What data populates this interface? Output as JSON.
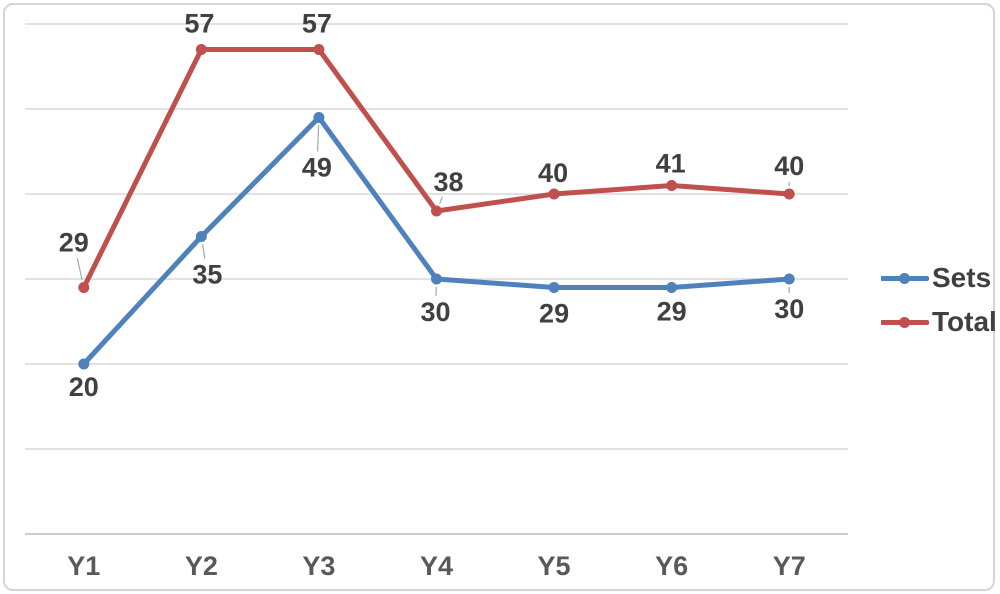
{
  "chart_data": {
    "type": "line",
    "title": "",
    "xlabel": "",
    "ylabel": "",
    "categories": [
      "Y1",
      "Y2",
      "Y3",
      "Y4",
      "Y5",
      "Y6",
      "Y7"
    ],
    "series": [
      {
        "name": "Sets",
        "color": "#4F81BD",
        "values": [
          20,
          35,
          49,
          30,
          29,
          29,
          30
        ],
        "label_offsets": [
          [
            0,
            23
          ],
          [
            6,
            38
          ],
          [
            -2,
            50
          ],
          [
            -1,
            33
          ],
          [
            0,
            26
          ],
          [
            0,
            24
          ],
          [
            0,
            30
          ]
        ],
        "leader_lines": [
          false,
          true,
          true,
          true,
          false,
          false,
          true
        ]
      },
      {
        "name": "Total",
        "color": "#C0504D",
        "values": [
          29,
          57,
          57,
          38,
          40,
          41,
          40
        ],
        "label_offsets": [
          [
            -10,
            -45
          ],
          [
            -2,
            -26
          ],
          [
            -2,
            -26
          ],
          [
            12,
            -29
          ],
          [
            -1,
            -21
          ],
          [
            -1,
            -22
          ],
          [
            0,
            -28
          ]
        ],
        "leader_lines": [
          true,
          false,
          false,
          true,
          false,
          false,
          true
        ]
      }
    ],
    "ylim": [
      0,
      60
    ],
    "ytick_step": 10,
    "grid": true,
    "y_axis_tick_labels_visible": false,
    "data_labels_visible": true,
    "legend_position": "right"
  },
  "styles": {
    "background": "#FFFFFF",
    "frame_border": "#D5D5D5",
    "gridline": "#D9D9D9",
    "axis_line": "#C6C6C6",
    "leader_line": "#A6A6A6",
    "data_label_color": "#404040",
    "axis_label_color": "#595959",
    "legend_label_color": "#404040"
  }
}
